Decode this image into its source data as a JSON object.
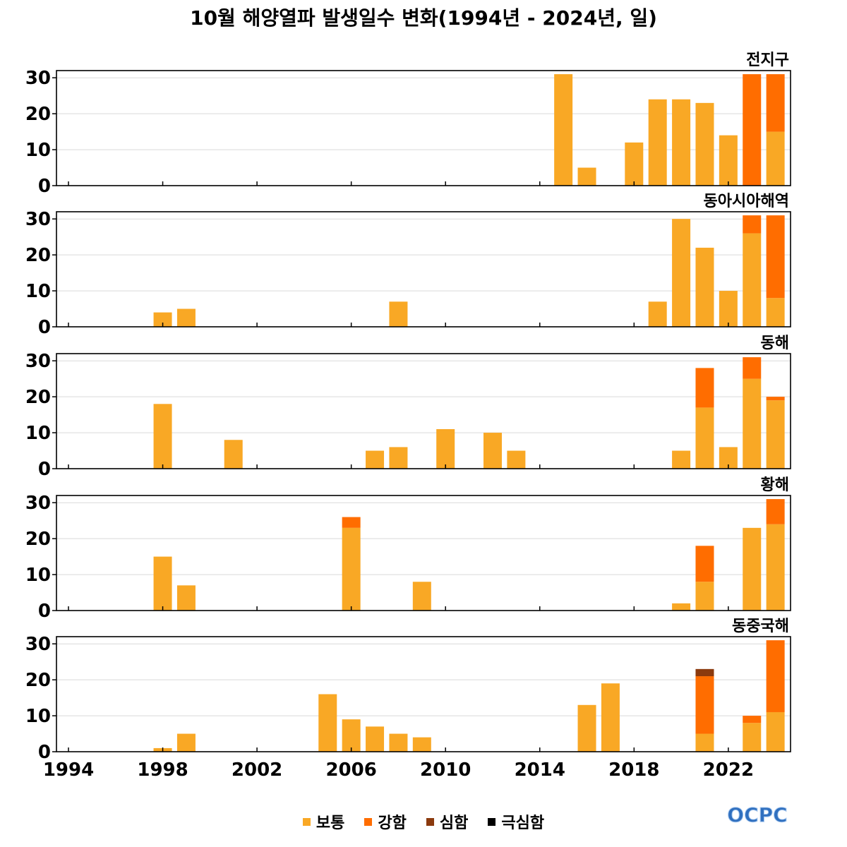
{
  "title": "10월 해양열파 발생일수 변화(1994년 - 2024년, 일)",
  "logo": "OCPC",
  "chart_data": {
    "type": "bar",
    "stacked": true,
    "x_ticks": [
      "1994",
      "1998",
      "2002",
      "2006",
      "2010",
      "2014",
      "2018",
      "2022"
    ],
    "ylim": [
      0,
      32
    ],
    "y_ticks": [
      0,
      10,
      20,
      30
    ],
    "grid": true,
    "legend_position": "bottom",
    "categories": [
      {
        "name": "보통",
        "color": "#F9A825"
      },
      {
        "name": "강함",
        "color": "#FF6D00"
      },
      {
        "name": "심함",
        "color": "#8B3A0E"
      },
      {
        "name": "극심함",
        "color": "#000000"
      }
    ],
    "panels": [
      {
        "title": "전지구",
        "bars": [
          {
            "year": 2015,
            "values": [
              31,
              0,
              0,
              0
            ]
          },
          {
            "year": 2016,
            "values": [
              5,
              0,
              0,
              0
            ]
          },
          {
            "year": 2018,
            "values": [
              12,
              0,
              0,
              0
            ]
          },
          {
            "year": 2019,
            "values": [
              24,
              0,
              0,
              0
            ]
          },
          {
            "year": 2020,
            "values": [
              24,
              0,
              0,
              0
            ]
          },
          {
            "year": 2021,
            "values": [
              23,
              0,
              0,
              0
            ]
          },
          {
            "year": 2022,
            "values": [
              14,
              0,
              0,
              0
            ]
          },
          {
            "year": 2023,
            "values": [
              0,
              31,
              0,
              0
            ]
          },
          {
            "year": 2024,
            "values": [
              15,
              16,
              0,
              0
            ]
          }
        ]
      },
      {
        "title": "동아시아해역",
        "bars": [
          {
            "year": 1998,
            "values": [
              4,
              0,
              0,
              0
            ]
          },
          {
            "year": 1999,
            "values": [
              5,
              0,
              0,
              0
            ]
          },
          {
            "year": 2008,
            "values": [
              7,
              0,
              0,
              0
            ]
          },
          {
            "year": 2019,
            "values": [
              7,
              0,
              0,
              0
            ]
          },
          {
            "year": 2020,
            "values": [
              30,
              0,
              0,
              0
            ]
          },
          {
            "year": 2021,
            "values": [
              22,
              0,
              0,
              0
            ]
          },
          {
            "year": 2022,
            "values": [
              10,
              0,
              0,
              0
            ]
          },
          {
            "year": 2023,
            "values": [
              26,
              5,
              0,
              0
            ]
          },
          {
            "year": 2024,
            "values": [
              8,
              23,
              0,
              0
            ]
          }
        ]
      },
      {
        "title": "동해",
        "bars": [
          {
            "year": 1998,
            "values": [
              18,
              0,
              0,
              0
            ]
          },
          {
            "year": 2001,
            "values": [
              8,
              0,
              0,
              0
            ]
          },
          {
            "year": 2007,
            "values": [
              5,
              0,
              0,
              0
            ]
          },
          {
            "year": 2008,
            "values": [
              6,
              0,
              0,
              0
            ]
          },
          {
            "year": 2010,
            "values": [
              11,
              0,
              0,
              0
            ]
          },
          {
            "year": 2012,
            "values": [
              10,
              0,
              0,
              0
            ]
          },
          {
            "year": 2013,
            "values": [
              5,
              0,
              0,
              0
            ]
          },
          {
            "year": 2020,
            "values": [
              5,
              0,
              0,
              0
            ]
          },
          {
            "year": 2021,
            "values": [
              17,
              11,
              0,
              0
            ]
          },
          {
            "year": 2022,
            "values": [
              6,
              0,
              0,
              0
            ]
          },
          {
            "year": 2023,
            "values": [
              25,
              6,
              0,
              0
            ]
          },
          {
            "year": 2024,
            "values": [
              19,
              1,
              0,
              0
            ]
          }
        ]
      },
      {
        "title": "황해",
        "bars": [
          {
            "year": 1998,
            "values": [
              15,
              0,
              0,
              0
            ]
          },
          {
            "year": 1999,
            "values": [
              7,
              0,
              0,
              0
            ]
          },
          {
            "year": 2006,
            "values": [
              23,
              3,
              0,
              0
            ]
          },
          {
            "year": 2009,
            "values": [
              8,
              0,
              0,
              0
            ]
          },
          {
            "year": 2020,
            "values": [
              2,
              0,
              0,
              0
            ]
          },
          {
            "year": 2021,
            "values": [
              8,
              10,
              0,
              0
            ]
          },
          {
            "year": 2023,
            "values": [
              23,
              0,
              0,
              0
            ]
          },
          {
            "year": 2024,
            "values": [
              24,
              7,
              0,
              0
            ]
          }
        ]
      },
      {
        "title": "동중국해",
        "bars": [
          {
            "year": 1998,
            "values": [
              1,
              0,
              0,
              0
            ]
          },
          {
            "year": 1999,
            "values": [
              5,
              0,
              0,
              0
            ]
          },
          {
            "year": 2005,
            "values": [
              16,
              0,
              0,
              0
            ]
          },
          {
            "year": 2006,
            "values": [
              9,
              0,
              0,
              0
            ]
          },
          {
            "year": 2007,
            "values": [
              7,
              0,
              0,
              0
            ]
          },
          {
            "year": 2008,
            "values": [
              5,
              0,
              0,
              0
            ]
          },
          {
            "year": 2009,
            "values": [
              4,
              0,
              0,
              0
            ]
          },
          {
            "year": 2016,
            "values": [
              13,
              0,
              0,
              0
            ]
          },
          {
            "year": 2017,
            "values": [
              19,
              0,
              0,
              0
            ]
          },
          {
            "year": 2021,
            "values": [
              5,
              16,
              2,
              0
            ]
          },
          {
            "year": 2023,
            "values": [
              8,
              2,
              0,
              0
            ]
          },
          {
            "year": 2024,
            "values": [
              11,
              20,
              0,
              0
            ]
          }
        ]
      }
    ]
  }
}
